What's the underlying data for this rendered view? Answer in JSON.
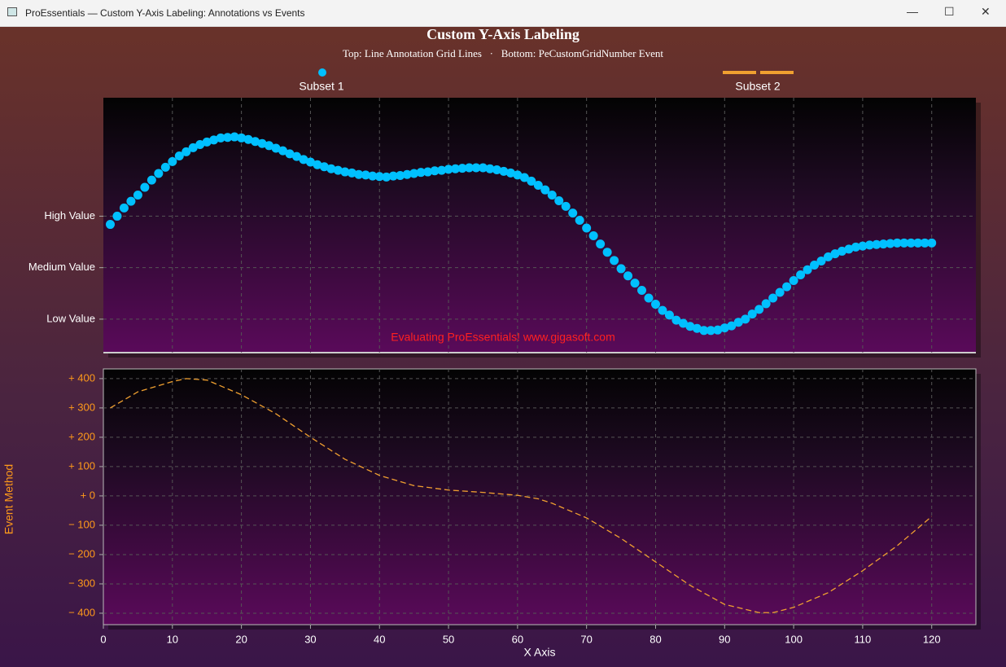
{
  "window": {
    "title": "ProEssentials — Custom Y-Axis Labeling: Annotations vs Events"
  },
  "chart_data": [
    {
      "type": "scatter",
      "title": "Custom Y-Axis Labeling",
      "subtitle": "Top: Line Annotation Grid Lines   ·   Bottom: PeCustomGridNumber Event",
      "annotation": "Evaluating ProEssentials! www.gigasoft.com",
      "xlim": [
        0,
        126.4
      ],
      "ylim": [
        35,
        530
      ],
      "yticks": [
        {
          "value": 100,
          "label": "Low Value"
        },
        {
          "value": 200,
          "label": "Medium Value"
        },
        {
          "value": 300,
          "label": "High Value"
        }
      ],
      "grid": true,
      "x": [
        1,
        2,
        3,
        4,
        5,
        6,
        7,
        8,
        9,
        10,
        11,
        12,
        13,
        14,
        15,
        16,
        17,
        18,
        19,
        20,
        21,
        22,
        23,
        24,
        25,
        26,
        27,
        28,
        29,
        30,
        31,
        32,
        33,
        34,
        35,
        36,
        37,
        38,
        39,
        40,
        41,
        42,
        43,
        44,
        45,
        46,
        47,
        48,
        49,
        50,
        51,
        52,
        53,
        54,
        55,
        56,
        57,
        58,
        59,
        60,
        61,
        62,
        63,
        64,
        65,
        66,
        67,
        68,
        69,
        70,
        71,
        72,
        73,
        74,
        75,
        76,
        77,
        78,
        79,
        80,
        81,
        82,
        83,
        84,
        85,
        86,
        87,
        88,
        89,
        90,
        91,
        92,
        93,
        94,
        95,
        96,
        97,
        98,
        99,
        100,
        101,
        102,
        103,
        104,
        105,
        106,
        107,
        108,
        109,
        110,
        111,
        112,
        113,
        114,
        115,
        116,
        117,
        118,
        119,
        120
      ],
      "series": [
        {
          "name": "Subset 1",
          "color": "#00c0ff",
          "values": [
            284,
            300,
            316,
            329,
            341,
            356,
            370,
            383,
            395,
            406,
            417,
            425,
            433,
            439,
            444,
            448,
            452,
            453,
            454,
            452,
            449,
            445,
            441,
            437,
            432,
            427,
            421,
            416,
            410,
            405,
            400,
            396,
            392,
            389,
            386,
            384,
            381,
            380,
            378,
            377,
            376,
            378,
            379,
            381,
            383,
            385,
            386,
            388,
            389,
            391,
            392,
            393,
            394,
            394,
            394,
            392,
            390,
            387,
            384,
            380,
            375,
            368,
            360,
            351,
            341,
            330,
            319,
            306,
            292,
            277,
            262,
            246,
            230,
            214,
            198,
            184,
            170,
            156,
            141,
            129,
            117,
            108,
            98,
            92,
            86,
            82,
            78,
            78,
            79,
            83,
            87,
            94,
            100,
            110,
            119,
            130,
            141,
            152,
            163,
            175,
            186,
            196,
            205,
            213,
            221,
            227,
            232,
            236,
            240,
            242,
            244,
            245,
            246,
            247,
            248,
            248,
            248,
            248,
            248,
            248
          ]
        }
      ]
    },
    {
      "type": "line",
      "y_label": "Event Method",
      "x_label": "X Axis",
      "xlim": [
        0,
        126.4
      ],
      "xticks": [
        0,
        10,
        20,
        30,
        40,
        50,
        60,
        70,
        80,
        90,
        100,
        110,
        120
      ],
      "ylim": [
        -439,
        433
      ],
      "yticks": [
        {
          "value": -400,
          "label": "− 400"
        },
        {
          "value": -300,
          "label": "− 300"
        },
        {
          "value": -200,
          "label": "− 200"
        },
        {
          "value": -100,
          "label": "− 100"
        },
        {
          "value": 0,
          "label": "+ 0"
        },
        {
          "value": 100,
          "label": "+ 100"
        },
        {
          "value": 200,
          "label": "+ 200"
        },
        {
          "value": 300,
          "label": "+ 300"
        },
        {
          "value": 400,
          "label": "+ 400"
        }
      ],
      "grid": true,
      "x": [
        1,
        5,
        10,
        12,
        15,
        20,
        25,
        30,
        35,
        40,
        45,
        50,
        55,
        60,
        63,
        65,
        70,
        75,
        80,
        85,
        90,
        95,
        97,
        100,
        105,
        110,
        115,
        120
      ],
      "series": [
        {
          "name": "Subset 2",
          "color": "#f0a030",
          "values": [
            300,
            355,
            390,
            400,
            395,
            345,
            280,
            200,
            125,
            70,
            35,
            20,
            12,
            2,
            -10,
            -25,
            -75,
            -145,
            -225,
            -305,
            -370,
            -398,
            -398,
            -380,
            -330,
            -255,
            -170,
            -70
          ]
        }
      ]
    }
  ]
}
